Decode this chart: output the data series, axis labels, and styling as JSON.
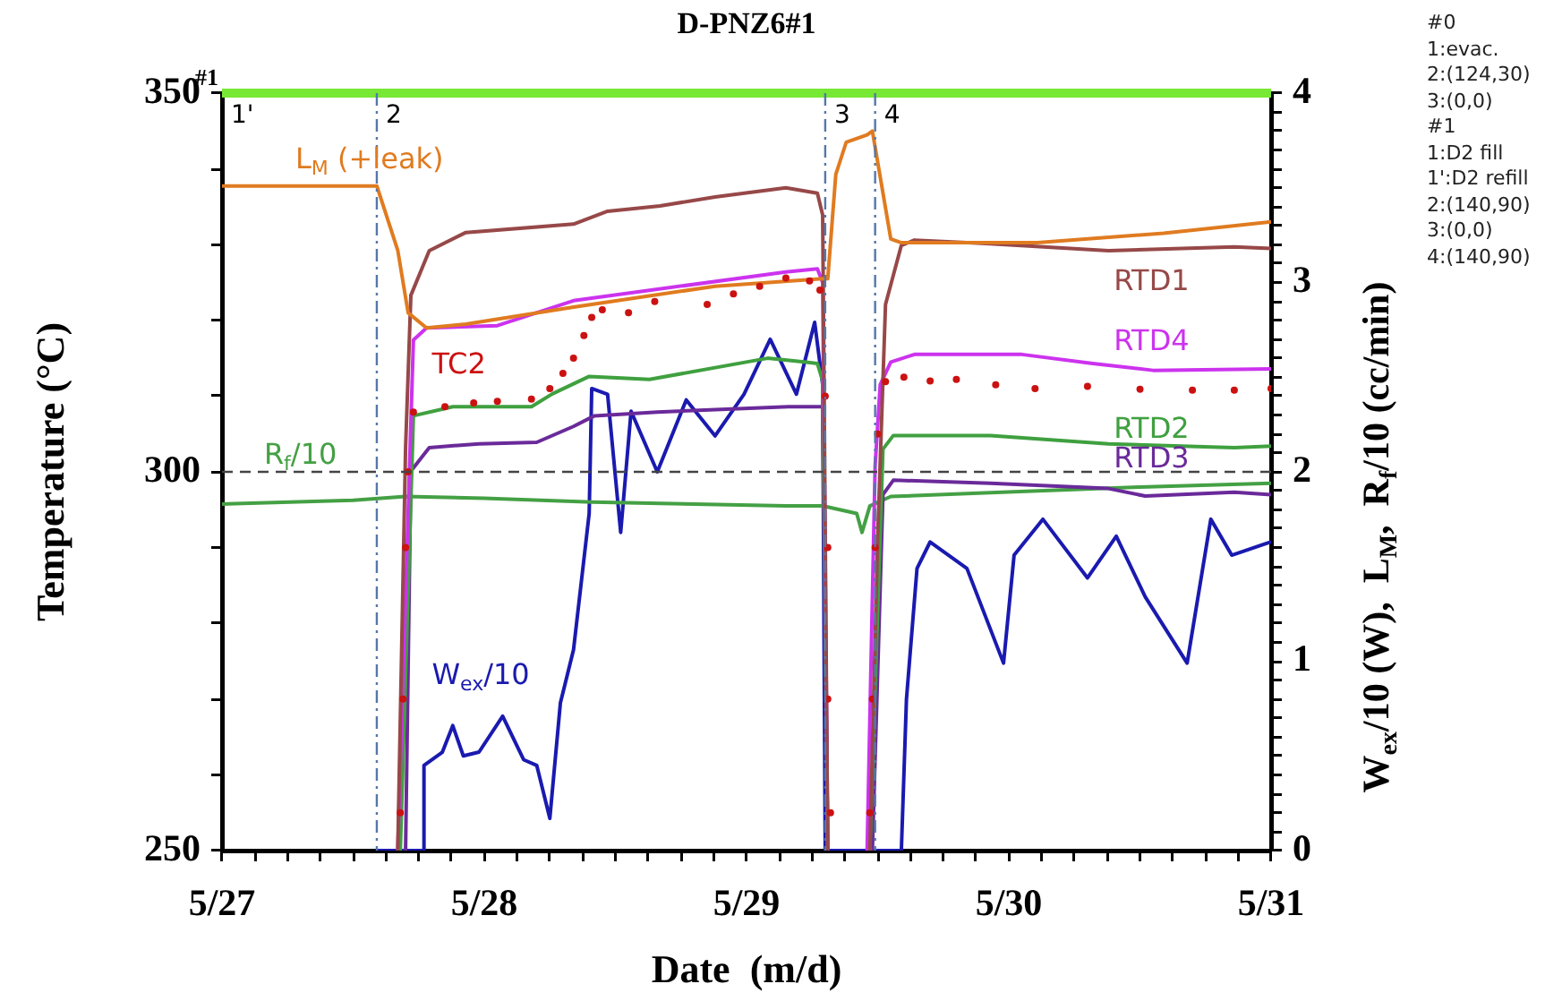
{
  "chart_data": {
    "type": "line",
    "title": "D-PNZ6#1",
    "xlabel": "Date  (m/d)",
    "ylabel": "Temperature (°C)",
    "y2label": "W$_{ex}$/10 (W),  L$_{M}$,  R$_{f}$/10 (cc/min)",
    "xlim": [
      "--05-27T00:00",
      "--05-31T00:00"
    ],
    "xticks": [
      {
        "value": "--05-27T00:00",
        "label": "5/27"
      },
      {
        "value": "--05-27T03:00",
        "label": null
      },
      {
        "value": "--05-27T06:00",
        "label": null
      },
      {
        "value": "--05-27T09:00",
        "label": null
      },
      {
        "value": "--05-27T12:00",
        "label": null
      },
      {
        "value": "--05-27T15:00",
        "label": null
      },
      {
        "value": "--05-27T18:00",
        "label": null
      },
      {
        "value": "--05-27T21:00",
        "label": null
      },
      {
        "value": "--05-28T00:00",
        "label": "5/28"
      },
      {
        "value": "--05-28T03:00",
        "label": null
      },
      {
        "value": "--05-28T06:00",
        "label": null
      },
      {
        "value": "--05-28T09:00",
        "label": null
      },
      {
        "value": "--05-28T12:00",
        "label": null
      },
      {
        "value": "--05-28T15:00",
        "label": null
      },
      {
        "value": "--05-28T18:00",
        "label": null
      },
      {
        "value": "--05-28T21:00",
        "label": null
      },
      {
        "value": "--05-29T00:00",
        "label": "5/29"
      },
      {
        "value": "--05-29T03:00",
        "label": null
      },
      {
        "value": "--05-29T06:00",
        "label": null
      },
      {
        "value": "--05-29T09:00",
        "label": null
      },
      {
        "value": "--05-29T12:00",
        "label": null
      },
      {
        "value": "--05-29T15:00",
        "label": null
      },
      {
        "value": "--05-29T18:00",
        "label": null
      },
      {
        "value": "--05-29T21:00",
        "label": null
      },
      {
        "value": "--05-30T00:00",
        "label": "5/30"
      },
      {
        "value": "--05-30T03:00",
        "label": null
      },
      {
        "value": "--05-30T06:00",
        "label": null
      },
      {
        "value": "--05-30T09:00",
        "label": null
      },
      {
        "value": "--05-30T12:00",
        "label": null
      },
      {
        "value": "--05-30T15:00",
        "label": null
      },
      {
        "value": "--05-30T18:00",
        "label": null
      },
      {
        "value": "--05-30T21:00",
        "label": null
      },
      {
        "value": "--05-31T00:00",
        "label": "5/31"
      }
    ],
    "ylim": [
      250,
      350
    ],
    "yticks": [
      250,
      {
        "value": 260,
        "label": null
      },
      {
        "value": 270,
        "label": null
      },
      {
        "value": 280,
        "label": null
      },
      {
        "value": 290,
        "label": null
      },
      300,
      {
        "value": 310,
        "label": null
      },
      {
        "value": 320,
        "label": null
      },
      {
        "value": 330,
        "label": null
      },
      {
        "value": 340,
        "label": null
      },
      350
    ],
    "y2lim": [
      0,
      4
    ],
    "y2ticks": [
      0,
      {
        "value": 0.1,
        "label": null
      },
      {
        "value": 0.2,
        "label": null
      },
      {
        "value": 0.3,
        "label": null
      },
      {
        "value": 0.4,
        "label": null
      },
      {
        "value": 0.5,
        "label": null
      },
      {
        "value": 0.6,
        "label": null
      },
      {
        "value": 0.7,
        "label": null
      },
      {
        "value": 0.8,
        "label": null
      },
      {
        "value": 0.9,
        "label": null
      },
      1,
      {
        "value": 1.1,
        "label": null
      },
      {
        "value": 1.2,
        "label": null
      },
      {
        "value": 1.3,
        "label": null
      },
      {
        "value": 1.4,
        "label": null
      },
      {
        "value": 1.5,
        "label": null
      },
      {
        "value": 1.6,
        "label": null
      },
      {
        "value": 1.7,
        "label": null
      },
      {
        "value": 1.8,
        "label": null
      },
      {
        "value": 1.9,
        "label": null
      },
      2,
      {
        "value": 2.1,
        "label": null
      },
      {
        "value": 2.2,
        "label": null
      },
      {
        "value": 2.3,
        "label": null
      },
      {
        "value": 2.4,
        "label": null
      },
      {
        "value": 2.5,
        "label": null
      },
      {
        "value": 2.6,
        "label": null
      },
      {
        "value": 2.7,
        "label": null
      },
      {
        "value": 2.8,
        "label": null
      },
      {
        "value": 2.9,
        "label": null
      },
      3,
      {
        "value": 3.1,
        "label": null
      },
      {
        "value": 3.2,
        "label": null
      },
      {
        "value": 3.3,
        "label": null
      },
      {
        "value": 3.4,
        "label": null
      },
      {
        "value": 3.5,
        "label": null
      },
      {
        "value": 3.6,
        "label": null
      },
      {
        "value": 3.7,
        "label": null
      },
      {
        "value": 3.8,
        "label": null
      },
      {
        "value": 3.9,
        "label": null
      },
      4
    ],
    "marker": "none",
    "series": [
      {
        "name": "L$_{M}$ (+leak)",
        "color": "#e07b20",
        "axis": "y2",
        "x": [
          "--05-27T00:00",
          "--05-27T14:10",
          "--05-27T16:05",
          "--05-27T17:02",
          "--05-27T18:43",
          "--05-27T22:19",
          "--05-28T08:10",
          "--05-28T21:07",
          "--05-29T06:58",
          "--05-29T07:26",
          "--05-29T08:10",
          "--05-29T09:07",
          "--05-29T11:02",
          "--05-29T11:31",
          "--05-29T13:12",
          "--05-29T14:10",
          "--05-30T02:38",
          "--05-30T14:10",
          "--05-31T00:00"
        ],
        "values": [
          3.51,
          3.51,
          3.17,
          2.84,
          2.76,
          2.78,
          2.87,
          2.98,
          3.02,
          3.02,
          3.57,
          3.74,
          3.78,
          3.8,
          3.23,
          3.21,
          3.21,
          3.26,
          3.32
        ]
      },
      {
        "name": "RTD1",
        "color": "#974848",
        "x": [
          "--05-27T16:05",
          "--05-27T16:48",
          "--05-27T17:17",
          "--05-27T18:58",
          "--05-27T22:19",
          "--05-28T08:10",
          "--05-28T11:17",
          "--05-28T16:05",
          "--05-28T21:07",
          "--05-29T03:36",
          "--05-29T06:29",
          "--05-29T06:58",
          "--05-29T07:26",
          "--05-29T09:36",
          "--05-29T11:17",
          "--05-29T12:00",
          "--05-29T12:43",
          "--05-29T14:10",
          "--05-29T15:22",
          "--05-29T22:19",
          "--05-30T09:07",
          "--05-30T20:38",
          "--05-31T00:00"
        ],
        "values": [
          250,
          303.2,
          323.3,
          329.2,
          331.6,
          332.7,
          334.4,
          335.1,
          336.3,
          337.5,
          336.8,
          333.9,
          250,
          null,
          250,
          291.4,
          322.1,
          329.9,
          330.6,
          330.1,
          329.2,
          329.7,
          329.5
        ]
      },
      {
        "name": "RTD4",
        "color": "#cc33ee",
        "x": [
          "--05-27T16:05",
          "--05-27T17:31",
          "--05-27T18:43",
          "--05-28T01:12",
          "--05-28T08:10",
          "--05-29T03:36",
          "--05-29T06:29",
          "--05-29T06:58",
          "--05-29T07:26",
          "--05-29T09:36",
          "--05-29T11:02",
          "--05-29T11:46",
          "--05-29T12:14",
          "--05-29T13:12",
          "--05-29T15:22",
          "--05-30T01:12",
          "--05-30T07:41",
          "--05-30T13:12",
          "--05-31T00:00"
        ],
        "values": [
          250,
          317.4,
          319,
          319.3,
          322.6,
          326.4,
          326.8,
          325,
          250,
          null,
          250,
          300.8,
          311.5,
          314.5,
          315.5,
          315.5,
          314.3,
          313.4,
          313.6
        ]
      },
      {
        "name": "TC2",
        "color": "#cc1111",
        "type": "scatter",
        "marker": "circle",
        "x": [
          "--05-27T16:19",
          "--05-27T16:34",
          "--05-27T16:48",
          "--05-27T17:02",
          "--05-27T17:31",
          "--05-27T20:24",
          "--05-27T23:02",
          "--05-28T01:12",
          "--05-28T04:19",
          "--05-28T06:00",
          "--05-28T07:12",
          "--05-28T08:10",
          "--05-28T09:07",
          "--05-28T09:50",
          "--05-28T10:48",
          "--05-28T13:12",
          "--05-28T15:36",
          "--05-28T20:24",
          "--05-28T22:48",
          "--05-29T01:12",
          "--05-29T03:36",
          "--05-29T05:46",
          "--05-29T06:43",
          "--05-29T07:12",
          "--05-29T07:26",
          "--05-29T07:26",
          "--05-29T07:41",
          "--05-29T11:17",
          "--05-29T11:31",
          "--05-29T11:46",
          "--05-29T12:00",
          "--05-29T12:43",
          "--05-29T14:24",
          "--05-29T16:48",
          "--05-29T19:12",
          "--05-29T22:48",
          "--05-30T02:24",
          "--05-30T07:12",
          "--05-30T12:00",
          "--05-30T16:48",
          "--05-30T20:38",
          "--05-31T00:00"
        ],
        "values": [
          255,
          270,
          290,
          300,
          307.9,
          308.6,
          309.1,
          309.3,
          309.6,
          311,
          313,
          315,
          318,
          320.4,
          321.4,
          321,
          322.5,
          322.1,
          323.5,
          324.5,
          325.6,
          325.2,
          324,
          310,
          290,
          270,
          255,
          255,
          270,
          290,
          305,
          311.9,
          312.5,
          312,
          312.2,
          311.5,
          311,
          311.3,
          310.9,
          310.8,
          310.8,
          311
        ]
      },
      {
        "name": "RTD2",
        "color": "#3fa03f",
        "x": [
          "--05-27T16:19",
          "--05-27T17:31",
          "--05-27T21:07",
          "--05-28T04:19",
          "--05-28T06:14",
          "--05-28T09:36",
          "--05-28T15:07",
          "--05-29T01:55",
          "--05-29T05:17",
          "--05-29T06:29",
          "--05-29T06:58",
          "--05-29T07:26",
          "--05-29T09:36",
          "--05-29T11:17",
          "--05-29T12:29",
          "--05-29T13:26",
          "--05-29T22:19",
          "--05-30T09:07",
          "--05-30T20:38",
          "--05-31T00:00"
        ],
        "values": [
          250,
          307.4,
          308.6,
          308.6,
          310.3,
          312.6,
          312.2,
          315,
          314.5,
          314.3,
          312,
          250,
          null,
          250,
          303,
          304.8,
          304.8,
          303.7,
          303.2,
          303.4
        ]
      },
      {
        "name": "RTD3",
        "color": "#6a2a9a",
        "x": [
          "--05-27T16:48",
          "--05-27T17:17",
          "--05-27T18:58",
          "--05-27T23:31",
          "--05-28T04:48",
          "--05-28T08:10",
          "--05-28T10:05",
          "--05-28T15:50",
          "--05-29T03:50",
          "--05-29T06:58",
          "--05-29T07:26",
          "--05-29T09:36",
          "--05-29T11:31",
          "--05-29T12:29",
          "--05-29T13:26",
          "--05-29T22:19",
          "--05-30T09:07",
          "--05-30T12:29",
          "--05-30T20:38",
          "--05-31T00:00"
        ],
        "values": [
          250,
          300.1,
          303.2,
          303.7,
          303.9,
          306,
          307.4,
          307.9,
          308.6,
          308.6,
          250,
          null,
          250,
          297,
          298.9,
          298.5,
          297.8,
          296.8,
          297.3,
          297
        ]
      },
      {
        "name": "R$_{f}$/10",
        "color": "#44a044",
        "axis": "y2",
        "x": [
          "--05-27T00:00",
          "--05-27T12:00",
          "--05-27T16:48",
          "--05-28T00:00",
          "--05-28T09:50",
          "--05-28T19:12",
          "--05-29T03:36",
          "--05-29T06:58",
          "--05-29T10:05",
          "--05-29T10:34",
          "--05-29T11:17",
          "--05-29T13:12",
          "--05-29T22:19",
          "--05-30T12:00",
          "--05-31T00:00"
        ],
        "values": [
          1.83,
          1.85,
          1.87,
          1.86,
          1.84,
          1.83,
          1.82,
          1.82,
          1.78,
          1.68,
          1.82,
          1.87,
          1.89,
          1.92,
          1.94
        ]
      },
      {
        "name": "W$_{ex}$/10",
        "color": "#1a1ab0",
        "axis": "y2",
        "x": [
          "--05-27T14:10",
          "--05-27T18:29",
          "--05-27T18:29",
          "--05-27T20:10",
          "--05-27T21:07",
          "--05-27T22:05",
          "--05-27T23:31",
          "--05-28T01:41",
          "--05-28T03:36",
          "--05-28T04:48",
          "--05-28T06:00",
          "--05-28T06:58",
          "--05-28T08:10",
          "--05-28T09:36",
          "--05-28T09:50",
          "--05-28T11:17",
          "--05-28T12:29",
          "--05-28T13:26",
          "--05-28T15:50",
          "--05-28T18:29",
          "--05-28T21:07",
          "--05-28T23:46",
          "--05-29T02:10",
          "--05-29T04:34",
          "--05-29T06:14",
          "--05-29T06:58",
          "--05-29T07:12",
          "--05-29T14:10",
          "--05-29T14:38",
          "--05-29T15:36",
          "--05-29T16:48",
          "--05-29T20:10",
          "--05-29T23:31",
          "--05-30T00:29",
          "--05-30T03:07",
          "--05-30T07:12",
          "--05-30T09:50",
          "--05-30T12:29",
          "--05-30T16:19",
          "--05-30T18:29",
          "--05-30T20:24",
          "--05-31T00:00"
        ],
        "values": [
          0,
          0,
          0.45,
          0.52,
          0.66,
          0.5,
          0.52,
          0.71,
          0.48,
          0.45,
          0.17,
          0.78,
          1.06,
          1.78,
          2.44,
          2.41,
          1.68,
          2.32,
          2,
          2.38,
          2.19,
          2.41,
          2.7,
          2.41,
          2.79,
          2.46,
          0,
          0,
          0.8,
          1.49,
          1.63,
          1.49,
          0.99,
          1.56,
          1.75,
          1.44,
          1.66,
          1.34,
          0.99,
          1.75,
          1.56,
          1.63
        ]
      }
    ],
    "ref_lines": [
      {
        "axis": "y",
        "value": 350,
        "color": "#77e833"
      },
      {
        "axis": "y",
        "value": 300,
        "color": "#444444",
        "line_style": "dashed"
      },
      {
        "axis": "x",
        "value": "--05-27T14:10",
        "color": "#5577aa",
        "line_style": "dashed"
      },
      {
        "axis": "x",
        "value": "--05-29T07:12",
        "color": "#5577aa",
        "line_style": "dashed"
      },
      {
        "axis": "x",
        "value": "--05-29T11:46",
        "color": "#5577aa",
        "line_style": "dashed"
      }
    ],
    "annotations": [
      "#0",
      "1:evac.",
      "2:(124,30)",
      "3:(0,0)",
      "#1",
      "1:D2 fill",
      "1':D2 refill",
      "2:(140,90)",
      "3:(0,0)",
      "4:(140,90)",
      {
        "text": "#1",
        "x": "--05-27T00:00",
        "y": 350
      },
      {
        "text": "1'",
        "x": "--05-27T00:00",
        "y": 350
      },
      {
        "text": "2",
        "x": "--05-27T14:10",
        "y": 350
      },
      {
        "text": "3",
        "x": "--05-29T07:12",
        "y": 350
      },
      {
        "text": "4",
        "x": "--05-29T11:46",
        "y": 350
      }
    ]
  }
}
